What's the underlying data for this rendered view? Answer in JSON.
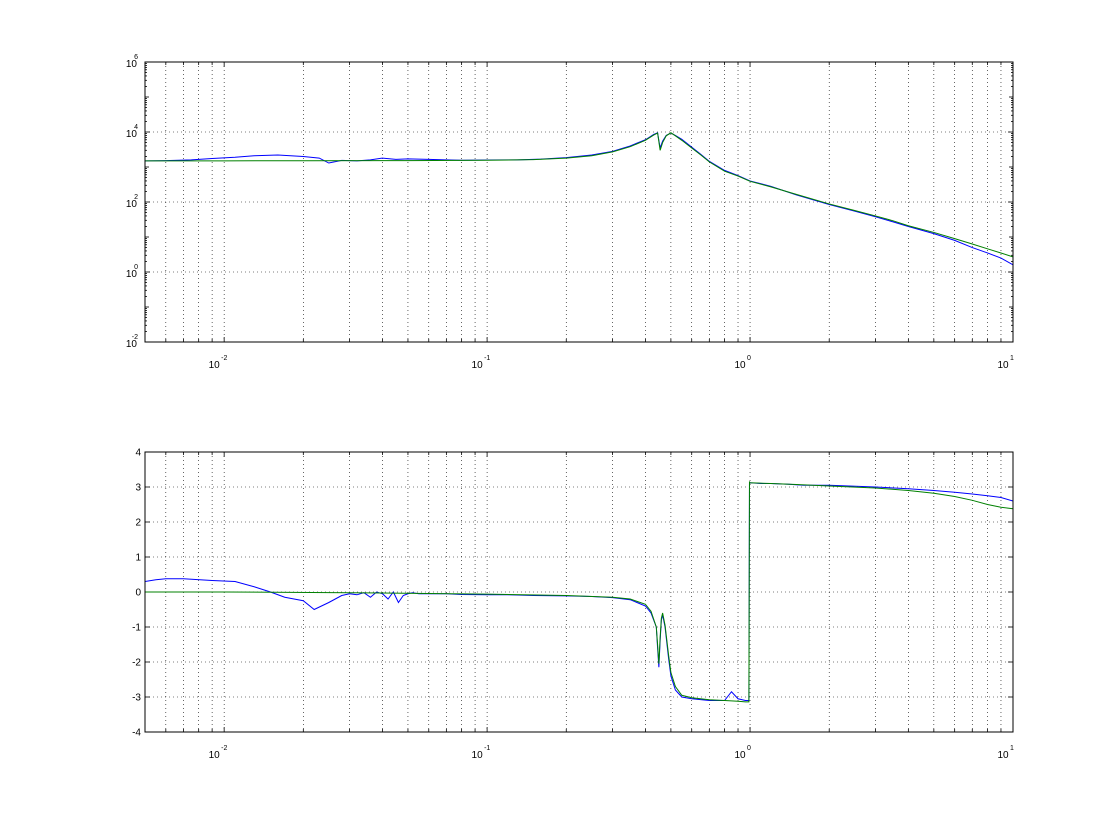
{
  "chart_data": [
    {
      "type": "line",
      "id": "magnitude",
      "xscale": "log",
      "yscale": "log",
      "xlim": [
        0.005,
        10
      ],
      "ylim": [
        0.01,
        1000000
      ],
      "xticks": [
        {
          "value": 0.01,
          "base": "10",
          "exp": "-2"
        },
        {
          "value": 0.1,
          "base": "10",
          "exp": "-1"
        },
        {
          "value": 1,
          "base": "10",
          "exp": "0"
        },
        {
          "value": 10,
          "base": "10",
          "exp": "1"
        }
      ],
      "yticks": [
        {
          "value": 0.01,
          "base": "10",
          "exp": "-2"
        },
        {
          "value": 1,
          "base": "10",
          "exp": "0"
        },
        {
          "value": 100,
          "base": "10",
          "exp": "2"
        },
        {
          "value": 10000,
          "base": "10",
          "exp": "4"
        },
        {
          "value": 1000000,
          "base": "10",
          "exp": "6"
        }
      ],
      "grid": true,
      "series": [
        {
          "color": "#0000ff",
          "x": [
            0.005,
            0.006,
            0.0075,
            0.009,
            0.011,
            0.013,
            0.016,
            0.02,
            0.023,
            0.025,
            0.028,
            0.032,
            0.036,
            0.04,
            0.045,
            0.05,
            0.06,
            0.07,
            0.08,
            0.1,
            0.13,
            0.16,
            0.2,
            0.25,
            0.3,
            0.35,
            0.4,
            0.43,
            0.445,
            0.455,
            0.465,
            0.48,
            0.5,
            0.52,
            0.55,
            0.6,
            0.65,
            0.7,
            0.8,
            0.9,
            1.0,
            1.2,
            1.5,
            2,
            2.5,
            3,
            3.5,
            4,
            5,
            6,
            7,
            8,
            9,
            10
          ],
          "y": [
            1500,
            1520,
            1600,
            1750,
            1900,
            2100,
            2200,
            2000,
            1800,
            1300,
            1550,
            1500,
            1600,
            1800,
            1650,
            1700,
            1650,
            1600,
            1560,
            1580,
            1600,
            1680,
            1850,
            2200,
            2800,
            4000,
            6000,
            8500,
            9500,
            3500,
            5500,
            8000,
            9300,
            8000,
            6200,
            3700,
            2300,
            1450,
            800,
            570,
            400,
            280,
            160,
            85,
            55,
            38,
            27,
            20,
            12.5,
            8,
            5,
            3.5,
            2.5,
            1.6
          ]
        },
        {
          "color": "#008000",
          "x": [
            0.005,
            0.01,
            0.02,
            0.05,
            0.1,
            0.15,
            0.2,
            0.25,
            0.3,
            0.35,
            0.4,
            0.43,
            0.445,
            0.455,
            0.465,
            0.48,
            0.5,
            0.52,
            0.55,
            0.6,
            0.65,
            0.7,
            0.8,
            0.9,
            1.0,
            1.2,
            1.5,
            2,
            2.5,
            3,
            3.5,
            4,
            5,
            6,
            7,
            8,
            9,
            10
          ],
          "y": [
            1500,
            1500,
            1510,
            1520,
            1560,
            1620,
            1800,
            2100,
            2700,
            3800,
            5800,
            8200,
            9300,
            3000,
            5000,
            7800,
            9500,
            7800,
            5800,
            3500,
            2200,
            1400,
            760,
            550,
            390,
            270,
            165,
            88,
            57,
            40,
            29,
            21,
            13.5,
            9,
            6.3,
            4.6,
            3.5,
            2.7
          ]
        }
      ]
    },
    {
      "type": "line",
      "id": "phase",
      "xscale": "log",
      "yscale": "linear",
      "xlim": [
        0.005,
        10
      ],
      "ylim": [
        -4,
        4
      ],
      "xticks": [
        {
          "value": 0.01,
          "base": "10",
          "exp": "-2"
        },
        {
          "value": 0.1,
          "base": "10",
          "exp": "-1"
        },
        {
          "value": 1,
          "base": "10",
          "exp": "0"
        },
        {
          "value": 10,
          "base": "10",
          "exp": "1"
        }
      ],
      "yticks": [
        {
          "value": -4,
          "label": "-4"
        },
        {
          "value": -3,
          "label": "-3"
        },
        {
          "value": -2,
          "label": "-2"
        },
        {
          "value": -1,
          "label": "-1"
        },
        {
          "value": 0,
          "label": "0"
        },
        {
          "value": 1,
          "label": "1"
        },
        {
          "value": 2,
          "label": "2"
        },
        {
          "value": 3,
          "label": "3"
        },
        {
          "value": 4,
          "label": "4"
        }
      ],
      "grid": true,
      "series": [
        {
          "color": "#0000ff",
          "x": [
            0.005,
            0.0055,
            0.006,
            0.007,
            0.009,
            0.011,
            0.013,
            0.015,
            0.017,
            0.02,
            0.022,
            0.025,
            0.028,
            0.03,
            0.032,
            0.034,
            0.036,
            0.038,
            0.04,
            0.042,
            0.044,
            0.046,
            0.048,
            0.05,
            0.052,
            0.055,
            0.06,
            0.07,
            0.08,
            0.1,
            0.12,
            0.15,
            0.2,
            0.25,
            0.3,
            0.35,
            0.4,
            0.42,
            0.44,
            0.445,
            0.45,
            0.455,
            0.46,
            0.465,
            0.475,
            0.49,
            0.5,
            0.52,
            0.55,
            0.6,
            0.7,
            0.8,
            0.85,
            0.9,
            0.96,
            0.99,
            0.995,
            1.0,
            1.1,
            1.2,
            1.4,
            1.6,
            2,
            3,
            4,
            5,
            6,
            7,
            8,
            9,
            10
          ],
          "y": [
            0.3,
            0.35,
            0.38,
            0.38,
            0.33,
            0.3,
            0.15,
            0.0,
            -0.15,
            -0.25,
            -0.5,
            -0.3,
            -0.1,
            -0.05,
            -0.08,
            -0.02,
            -0.15,
            0.0,
            -0.05,
            -0.2,
            0.0,
            -0.3,
            -0.1,
            -0.05,
            -0.02,
            -0.05,
            -0.05,
            -0.05,
            -0.07,
            -0.08,
            -0.08,
            -0.1,
            -0.11,
            -0.13,
            -0.16,
            -0.22,
            -0.4,
            -0.6,
            -1.0,
            -1.6,
            -2.15,
            -1.4,
            -0.8,
            -0.65,
            -1.0,
            -1.9,
            -2.4,
            -2.8,
            -3.0,
            -3.05,
            -3.1,
            -3.1,
            -2.85,
            -3.05,
            -3.1,
            -3.1,
            3.1,
            3.12,
            3.1,
            3.1,
            3.08,
            3.05,
            3.05,
            3.0,
            2.95,
            2.9,
            2.85,
            2.8,
            2.75,
            2.7,
            2.6
          ]
        },
        {
          "color": "#008000",
          "x": [
            0.005,
            0.01,
            0.03,
            0.1,
            0.2,
            0.3,
            0.35,
            0.4,
            0.42,
            0.44,
            0.445,
            0.45,
            0.455,
            0.46,
            0.465,
            0.475,
            0.49,
            0.5,
            0.52,
            0.55,
            0.6,
            0.7,
            0.8,
            0.9,
            0.96,
            0.99,
            0.995,
            1.0,
            1.2,
            1.5,
            2,
            3,
            4,
            5,
            6,
            7,
            8,
            9,
            10
          ],
          "y": [
            0.0,
            0.0,
            -0.02,
            -0.06,
            -0.1,
            -0.15,
            -0.2,
            -0.35,
            -0.55,
            -1.0,
            -1.5,
            -2.05,
            -1.3,
            -0.75,
            -0.6,
            -0.95,
            -1.8,
            -2.3,
            -2.7,
            -2.95,
            -3.02,
            -3.08,
            -3.1,
            -3.12,
            -3.14,
            -3.14,
            3.14,
            3.12,
            3.1,
            3.07,
            3.03,
            2.97,
            2.9,
            2.82,
            2.73,
            2.62,
            2.5,
            2.42,
            2.38
          ]
        }
      ]
    }
  ]
}
